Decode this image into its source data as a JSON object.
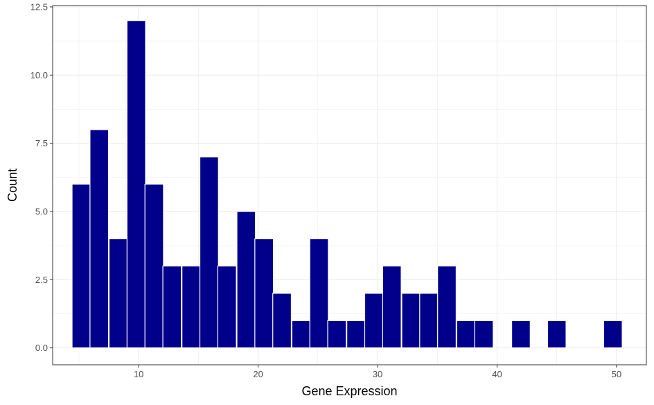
{
  "chart_data": {
    "type": "bar",
    "title": "",
    "xlabel": "Gene Expression",
    "ylabel": "Count",
    "xlim": [
      2.8,
      52.5
    ],
    "ylim": [
      -0.62,
      12.55
    ],
    "x_ticks": [
      10,
      20,
      30,
      40,
      50
    ],
    "x_tick_labels": [
      "10",
      "20",
      "30",
      "40",
      "50"
    ],
    "y_ticks": [
      0,
      2.5,
      5,
      7.5,
      10,
      12.5
    ],
    "y_tick_labels": [
      "0.0",
      "2.5",
      "5.0",
      "7.5",
      "10.0",
      "12.5"
    ],
    "bin_width": 1.55,
    "bins": [
      {
        "x": 5.2,
        "count": 6
      },
      {
        "x": 6.7,
        "count": 8
      },
      {
        "x": 8.3,
        "count": 4
      },
      {
        "x": 9.8,
        "count": 12
      },
      {
        "x": 11.3,
        "count": 6
      },
      {
        "x": 12.8,
        "count": 3
      },
      {
        "x": 14.4,
        "count": 3
      },
      {
        "x": 15.9,
        "count": 7
      },
      {
        "x": 17.4,
        "count": 3
      },
      {
        "x": 19.0,
        "count": 5
      },
      {
        "x": 20.5,
        "count": 4
      },
      {
        "x": 22.0,
        "count": 2
      },
      {
        "x": 23.6,
        "count": 1
      },
      {
        "x": 25.1,
        "count": 4
      },
      {
        "x": 26.6,
        "count": 1
      },
      {
        "x": 28.2,
        "count": 1
      },
      {
        "x": 29.7,
        "count": 2
      },
      {
        "x": 31.2,
        "count": 3
      },
      {
        "x": 32.8,
        "count": 2
      },
      {
        "x": 34.3,
        "count": 2
      },
      {
        "x": 35.8,
        "count": 3
      },
      {
        "x": 37.4,
        "count": 1
      },
      {
        "x": 38.9,
        "count": 1
      },
      {
        "x": 42.0,
        "count": 1
      },
      {
        "x": 45.0,
        "count": 1
      },
      {
        "x": 49.7,
        "count": 1
      }
    ],
    "bar_fill": "#00008b",
    "bar_outline": "#ffffff",
    "grid": true,
    "grid_color": "#ebebeb",
    "panel_border_color": "#333333",
    "legend": "none"
  }
}
